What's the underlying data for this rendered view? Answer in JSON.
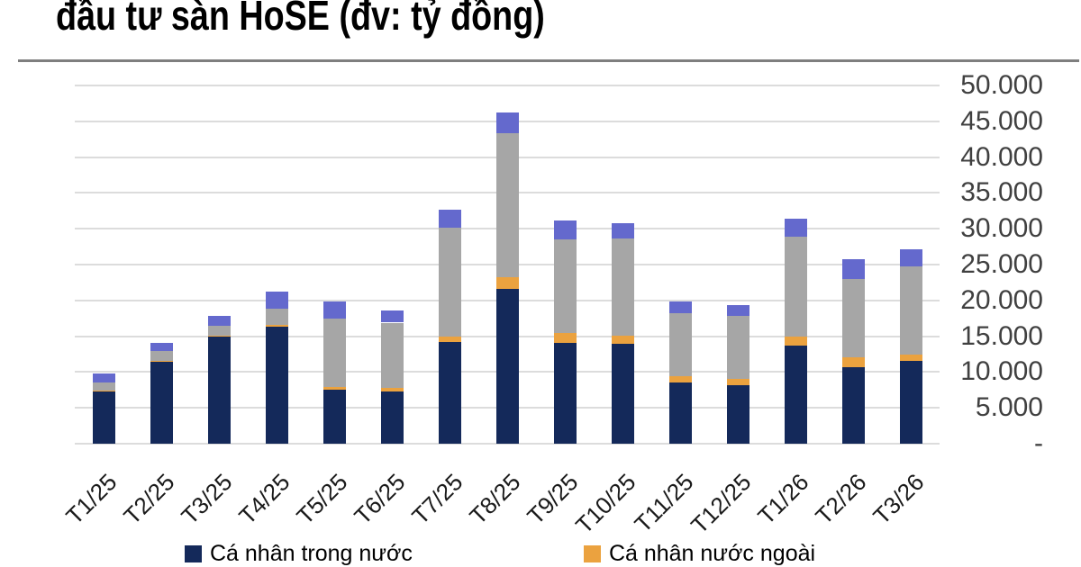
{
  "title": "đầu tư sàn HoSE (đv: tỷ đồng)",
  "chart_data": {
    "type": "bar",
    "stacked": true,
    "grid": true,
    "legend_position": "bottom",
    "ylim": [
      0,
      50000
    ],
    "categories": [
      "T1/25",
      "T2/25",
      "T3/25",
      "T4/25",
      "T5/25",
      "T6/25",
      "T7/25",
      "T8/25",
      "T9/25",
      "T10/25",
      "T11/25",
      "T12/25",
      "T1/26",
      "T2/26",
      "T3/26"
    ],
    "series": [
      {
        "name": "Cá nhân trong nước",
        "color": "#14295A",
        "values": [
          7300,
          11500,
          15000,
          16300,
          7500,
          7300,
          14200,
          21600,
          14100,
          13900,
          8600,
          8200,
          13700,
          10700,
          11600
        ]
      },
      {
        "name": "Cá nhân nước ngoài",
        "color": "#EBA23F",
        "values": [
          100,
          100,
          100,
          300,
          400,
          500,
          700,
          1600,
          1300,
          1200,
          800,
          900,
          1200,
          1300,
          900
        ]
      },
      {
        "name": "",
        "color": "#A6A6A6",
        "values": [
          1100,
          1300,
          1300,
          2200,
          9600,
          9100,
          15300,
          20200,
          13100,
          13500,
          8800,
          8700,
          14000,
          11000,
          12200
        ]
      },
      {
        "name": "",
        "color": "#6469CD",
        "values": [
          1300,
          1200,
          1500,
          2400,
          2300,
          1700,
          2500,
          2800,
          2600,
          2200,
          1600,
          1500,
          2500,
          2700,
          2400
        ]
      }
    ],
    "yticks": [
      {
        "value": 0,
        "label": "-"
      },
      {
        "value": 5000,
        "label": "5.000"
      },
      {
        "value": 10000,
        "label": "10.000"
      },
      {
        "value": 15000,
        "label": "15.000"
      },
      {
        "value": 20000,
        "label": "20.000"
      },
      {
        "value": 25000,
        "label": "25.000"
      },
      {
        "value": 30000,
        "label": "30.000"
      },
      {
        "value": 35000,
        "label": "35.000"
      },
      {
        "value": 40000,
        "label": "40.000"
      },
      {
        "value": 45000,
        "label": "45.000"
      },
      {
        "value": 50000,
        "label": "50.000"
      }
    ],
    "legend": [
      {
        "label": "Cá nhân trong nước",
        "color": "#14295A"
      },
      {
        "label": "Cá nhân nước ngoài",
        "color": "#EBA23F"
      }
    ]
  }
}
